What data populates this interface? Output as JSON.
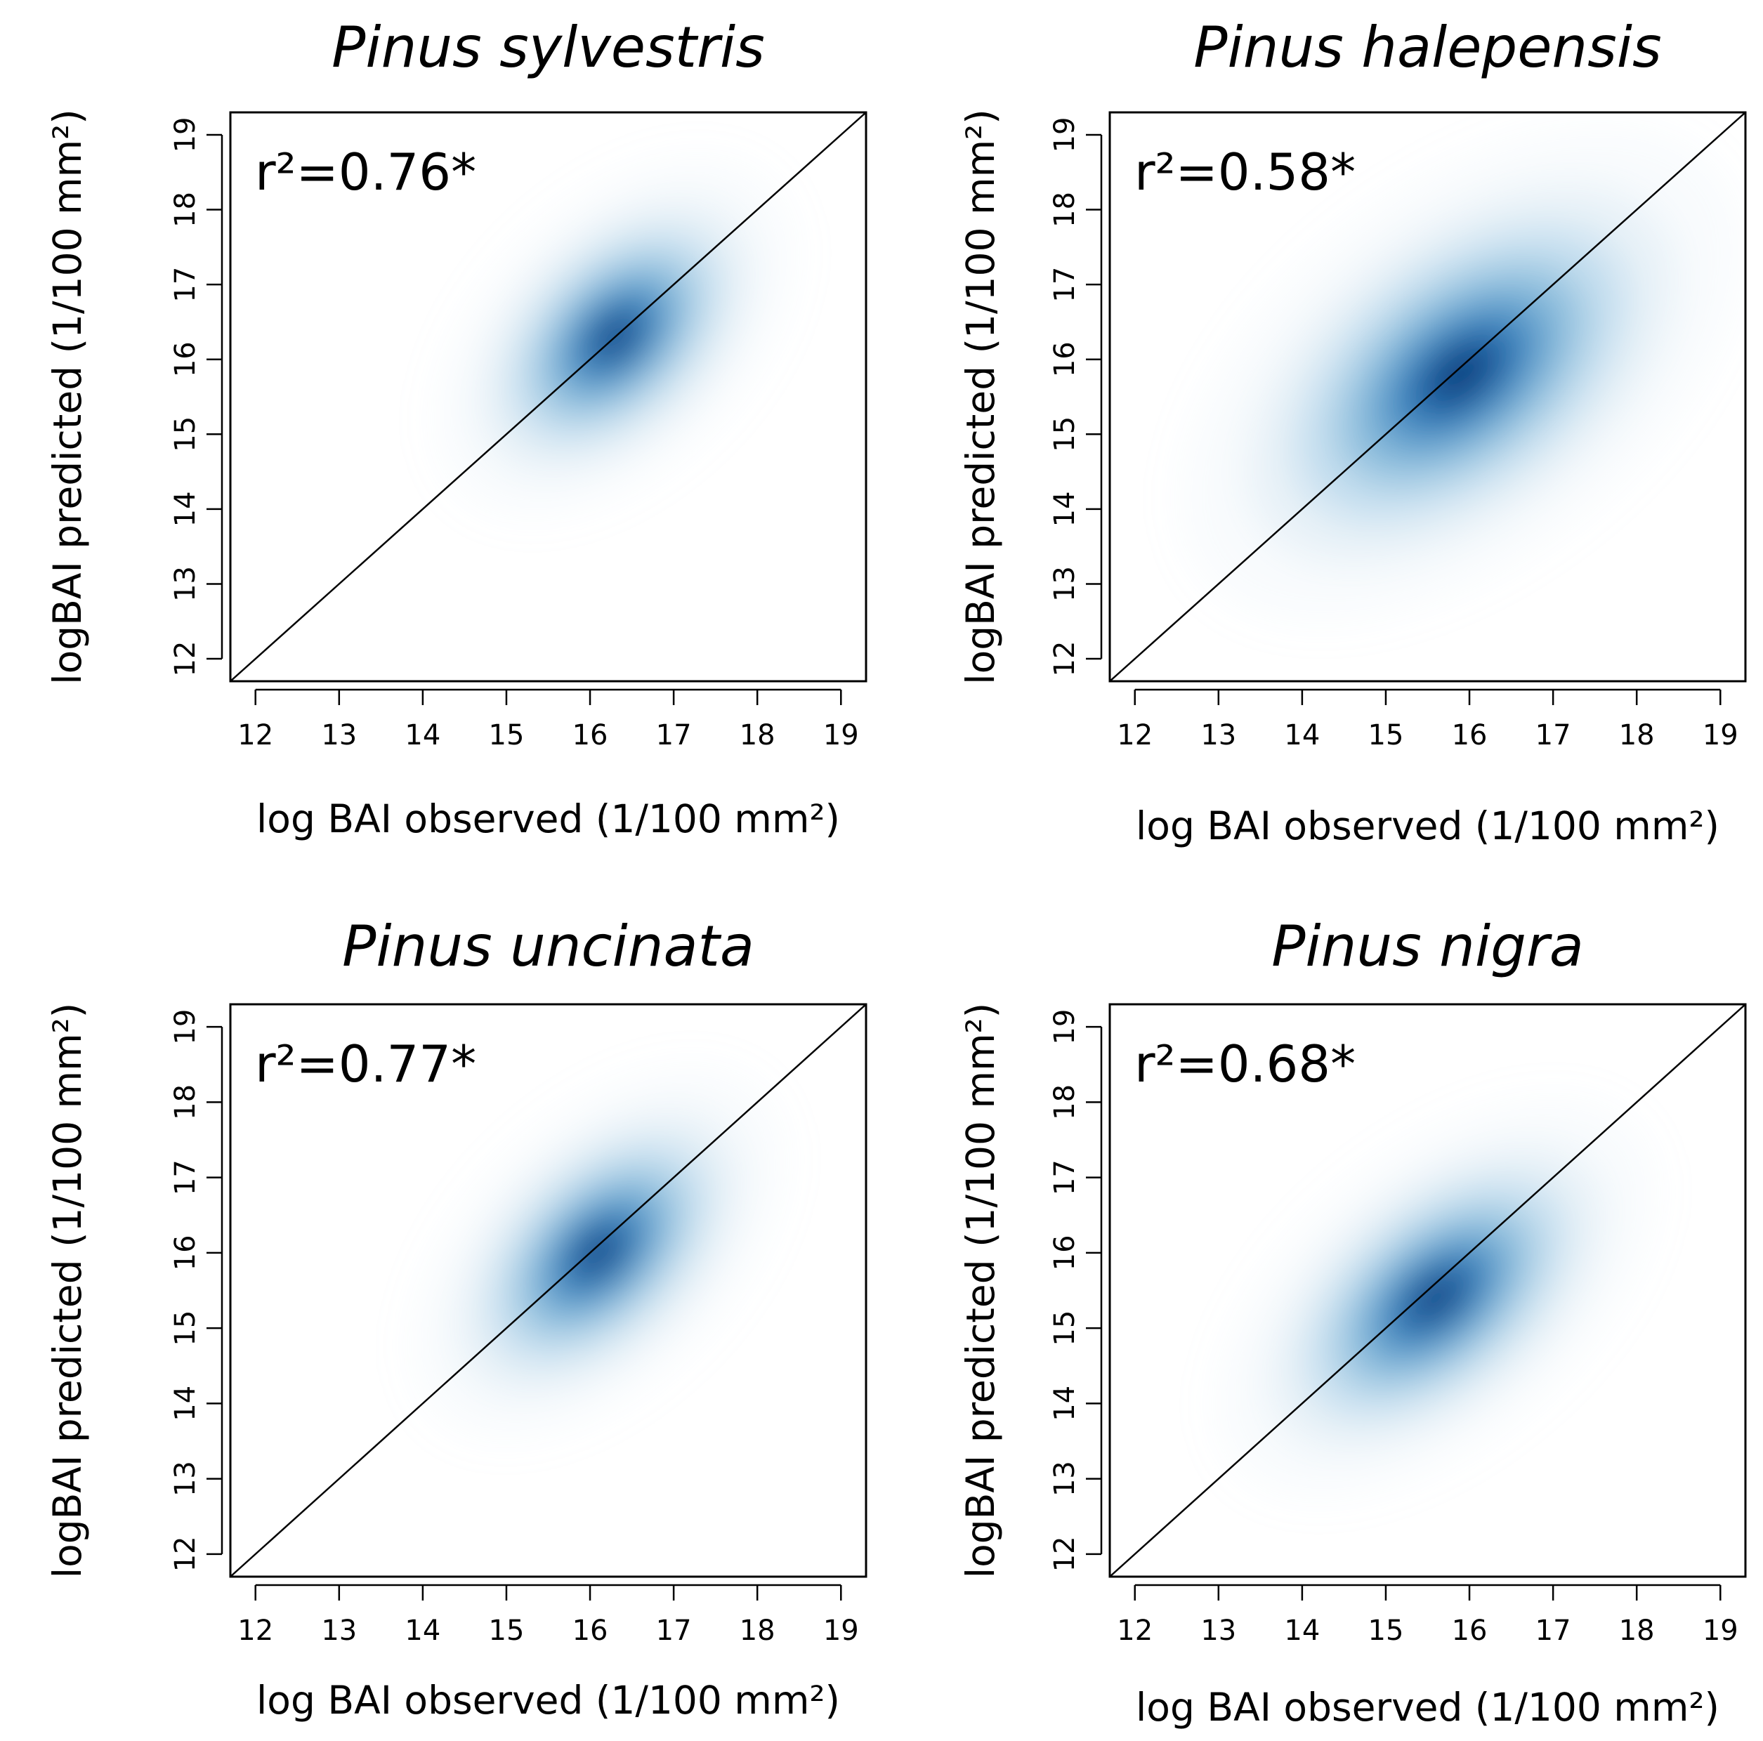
{
  "chart_data": [
    {
      "type": "scatter",
      "subtype": "density",
      "title": "Pinus sylvestris",
      "xlabel": "log BAI observed (1/100 mm²)",
      "ylabel": "logBAI predicted (1/100 mm²)",
      "annotation": "r²=0.76*",
      "xlim": [
        11.7,
        19.3
      ],
      "ylim": [
        11.7,
        19.3
      ],
      "xticks": [
        12,
        13,
        14,
        15,
        16,
        17,
        18,
        19
      ],
      "yticks": [
        12,
        13,
        14,
        15,
        16,
        17,
        18,
        19
      ],
      "reference_line": "1:1",
      "density_center": [
        16.3,
        16.3
      ],
      "density_spread": [
        1.0,
        0.6
      ],
      "density_angle_deg": 45,
      "color": "#08519c"
    },
    {
      "type": "scatter",
      "subtype": "density",
      "title": "Pinus halepensis",
      "xlabel": "log BAI observed (1/100 mm²)",
      "ylabel": "logBAI predicted (1/100 mm²)",
      "annotation": "r²=0.58*",
      "xlim": [
        11.7,
        19.3
      ],
      "ylim": [
        11.7,
        19.3
      ],
      "xticks": [
        12,
        13,
        14,
        15,
        16,
        17,
        18,
        19
      ],
      "yticks": [
        12,
        13,
        14,
        15,
        16,
        17,
        18,
        19
      ],
      "reference_line": "1:1",
      "density_center": [
        15.9,
        15.8
      ],
      "density_spread": [
        1.5,
        0.85
      ],
      "density_angle_deg": 38,
      "color": "#08519c"
    },
    {
      "type": "scatter",
      "subtype": "density",
      "title": "Pinus uncinata",
      "xlabel": "log BAI observed (1/100 mm²)",
      "ylabel": "logBAI predicted (1/100 mm²)",
      "annotation": "r²=0.77*",
      "xlim": [
        11.7,
        19.3
      ],
      "ylim": [
        11.7,
        19.3
      ],
      "xticks": [
        12,
        13,
        14,
        15,
        16,
        17,
        18,
        19
      ],
      "yticks": [
        12,
        13,
        14,
        15,
        16,
        17,
        18,
        19
      ],
      "reference_line": "1:1",
      "density_center": [
        16.1,
        16.0
      ],
      "density_spread": [
        1.05,
        0.6
      ],
      "density_angle_deg": 45,
      "color": "#08519c"
    },
    {
      "type": "scatter",
      "subtype": "density",
      "title": "Pinus nigra",
      "xlabel": "log BAI observed (1/100 mm²)",
      "ylabel": "logBAI predicted (1/100 mm²)",
      "annotation": "r²=0.68*",
      "xlim": [
        11.7,
        19.3
      ],
      "ylim": [
        11.7,
        19.3
      ],
      "xticks": [
        12,
        13,
        14,
        15,
        16,
        17,
        18,
        19
      ],
      "yticks": [
        12,
        13,
        14,
        15,
        16,
        17,
        18,
        19
      ],
      "reference_line": "1:1",
      "density_center": [
        15.6,
        15.4
      ],
      "density_spread": [
        1.2,
        0.65
      ],
      "density_angle_deg": 40,
      "color": "#08519c"
    }
  ]
}
